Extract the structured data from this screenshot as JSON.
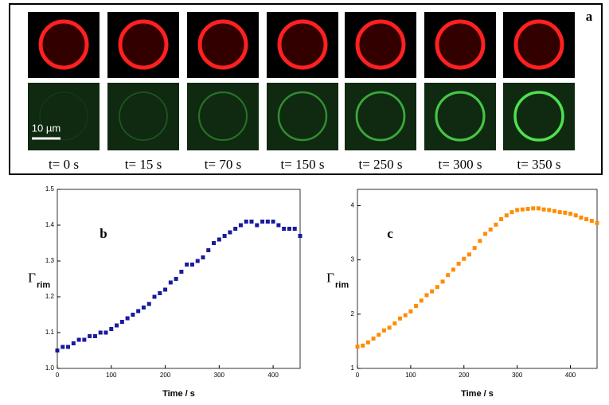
{
  "panel_a": {
    "label": "a",
    "scale_bar": "10 µm",
    "frames": [
      "t= 0 s",
      "t= 15 s",
      "t= 70 s",
      "t= 150 s",
      "t= 250 s",
      "t= 300 s",
      "t= 350 s"
    ]
  },
  "chart_data": [
    {
      "type": "scatter",
      "panel_label": "b",
      "x_label": "Time / s",
      "y_label": "Γ",
      "y_label_subscript": "rim",
      "xlim": [
        0,
        450
      ],
      "ylim": [
        1.0,
        1.5
      ],
      "xticks": [
        0,
        100,
        200,
        300,
        400
      ],
      "yticks": [
        {
          "value": 1,
          "label": "1.0"
        },
        1.1,
        1.2,
        1.3,
        1.4,
        1.5
      ],
      "series": [
        {
          "color": "#1a1a9c",
          "x": [
            0,
            10,
            20,
            30,
            40,
            50,
            60,
            70,
            80,
            90,
            100,
            110,
            120,
            130,
            140,
            150,
            160,
            170,
            180,
            190,
            200,
            210,
            220,
            230,
            240,
            250,
            260,
            270,
            280,
            290,
            300,
            310,
            320,
            330,
            340,
            350,
            360,
            370,
            380,
            390,
            400,
            410,
            420,
            430,
            440,
            450
          ],
          "values": [
            1.05,
            1.06,
            1.06,
            1.07,
            1.08,
            1.08,
            1.09,
            1.09,
            1.1,
            1.1,
            1.11,
            1.12,
            1.13,
            1.14,
            1.15,
            1.16,
            1.17,
            1.18,
            1.2,
            1.21,
            1.22,
            1.24,
            1.25,
            1.27,
            1.29,
            1.29,
            1.3,
            1.31,
            1.33,
            1.35,
            1.36,
            1.37,
            1.38,
            1.39,
            1.4,
            1.41,
            1.41,
            1.4,
            1.41,
            1.41,
            1.41,
            1.4,
            1.39,
            1.39,
            1.39,
            1.37
          ]
        }
      ]
    },
    {
      "type": "scatter",
      "panel_label": "c",
      "x_label": "Time / s",
      "y_label": "Γ",
      "y_label_subscript": "rim",
      "xlim": [
        0,
        450
      ],
      "ylim": [
        1,
        4.3
      ],
      "xticks": [
        0,
        100,
        200,
        300,
        400
      ],
      "yticks": [
        1,
        2,
        3,
        4
      ],
      "series": [
        {
          "color": "#ff8c00",
          "x": [
            0,
            10,
            20,
            30,
            40,
            50,
            60,
            70,
            80,
            90,
            100,
            110,
            120,
            130,
            140,
            150,
            160,
            170,
            180,
            190,
            200,
            210,
            220,
            230,
            240,
            250,
            260,
            270,
            280,
            290,
            300,
            310,
            320,
            330,
            340,
            350,
            360,
            370,
            380,
            390,
            400,
            410,
            420,
            430,
            440,
            450
          ],
          "values": [
            1.4,
            1.42,
            1.48,
            1.55,
            1.62,
            1.7,
            1.75,
            1.83,
            1.92,
            1.98,
            2.05,
            2.15,
            2.25,
            2.35,
            2.42,
            2.5,
            2.6,
            2.72,
            2.82,
            2.93,
            3.02,
            3.1,
            3.22,
            3.35,
            3.48,
            3.56,
            3.65,
            3.75,
            3.82,
            3.88,
            3.92,
            3.93,
            3.94,
            3.95,
            3.95,
            3.93,
            3.92,
            3.9,
            3.88,
            3.87,
            3.85,
            3.82,
            3.78,
            3.75,
            3.72,
            3.68
          ]
        }
      ]
    }
  ]
}
